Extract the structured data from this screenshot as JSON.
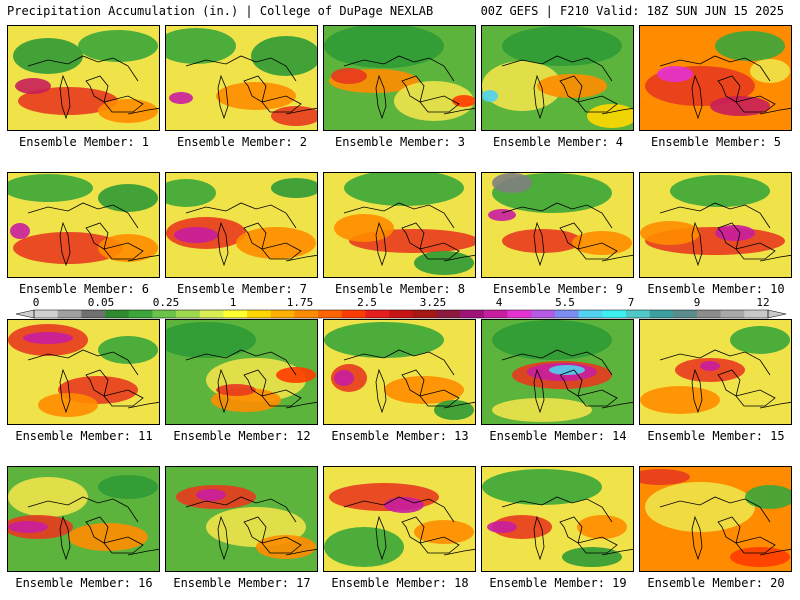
{
  "header": {
    "left_title": "Precipitation Accumulation (in.) | College of DuPage NEXLAB",
    "right_title": "00Z GEFS | F210 Valid: 18Z SUN JUN 15 2025"
  },
  "colorbar": {
    "labels": [
      "0",
      "0.05",
      "0.25",
      "1",
      "1.75",
      "2.5",
      "3.25",
      "4",
      "5.5",
      "7",
      "9",
      "12"
    ],
    "colors": [
      "#cfcfcf",
      "#a0a0a0",
      "#707070",
      "#2e8b2e",
      "#3aa63a",
      "#6cc34a",
      "#9ed84f",
      "#d9ee55",
      "#ffff32",
      "#ffd700",
      "#ffb000",
      "#ff8c00",
      "#ff6400",
      "#ff3c00",
      "#e61e1e",
      "#c81414",
      "#a51818",
      "#8c1a3c",
      "#a0147a",
      "#c81ea0",
      "#e632d2",
      "#b45ae6",
      "#7d8cf0",
      "#50d2f0",
      "#3cf0f0",
      "#50c8c8",
      "#3ca0a0",
      "#5a8c8c",
      "#8c8c8c",
      "#a8a8a8",
      "#c8c8c8"
    ]
  },
  "panels": [
    {
      "label": "Ensemble Member: 1",
      "base": "#f0e34a",
      "blobs": [
        [
          "#2f9a35",
          40,
          30,
          35,
          18
        ],
        [
          "#3aa63a",
          110,
          20,
          40,
          16
        ],
        [
          "#e83a1e",
          60,
          75,
          50,
          14
        ],
        [
          "#c81e5a",
          25,
          60,
          18,
          8
        ],
        [
          "#ff8c00",
          120,
          85,
          30,
          12
        ]
      ]
    },
    {
      "label": "Ensemble Member: 2",
      "base": "#f0e34a",
      "blobs": [
        [
          "#3aa63a",
          30,
          20,
          40,
          18
        ],
        [
          "#2f9a35",
          120,
          30,
          35,
          20
        ],
        [
          "#ff8c00",
          90,
          70,
          40,
          14
        ],
        [
          "#e83a1e",
          130,
          90,
          25,
          10
        ],
        [
          "#c81ea0",
          15,
          72,
          12,
          6
        ]
      ]
    },
    {
      "label": "Ensemble Member: 3",
      "base": "#5cb43c",
      "blobs": [
        [
          "#2f9a35",
          60,
          20,
          60,
          22
        ],
        [
          "#ff8c00",
          50,
          55,
          45,
          12
        ],
        [
          "#e83a1e",
          25,
          50,
          18,
          8
        ],
        [
          "#f0e34a",
          110,
          75,
          40,
          20
        ],
        [
          "#ff3c00",
          140,
          75,
          12,
          6
        ]
      ]
    },
    {
      "label": "Ensemble Member: 4",
      "base": "#5cb43c",
      "blobs": [
        [
          "#2f9a35",
          80,
          20,
          60,
          20
        ],
        [
          "#f0e34a",
          40,
          60,
          40,
          25
        ],
        [
          "#50d2f0",
          8,
          70,
          8,
          6
        ],
        [
          "#ff8c00",
          90,
          60,
          35,
          12
        ],
        [
          "#ffd700",
          130,
          90,
          25,
          12
        ]
      ]
    },
    {
      "label": "Ensemble Member: 5",
      "base": "#ff8c00",
      "blobs": [
        [
          "#3aa63a",
          110,
          20,
          35,
          15
        ],
        [
          "#e83a1e",
          60,
          60,
          55,
          20
        ],
        [
          "#e632d2",
          35,
          48,
          18,
          8
        ],
        [
          "#c81e5a",
          100,
          80,
          30,
          10
        ],
        [
          "#f0e34a",
          130,
          45,
          20,
          12
        ]
      ]
    },
    {
      "label": "Ensemble Member: 6",
      "base": "#f0e34a",
      "blobs": [
        [
          "#3aa63a",
          40,
          15,
          45,
          14
        ],
        [
          "#2f9a35",
          120,
          25,
          30,
          14
        ],
        [
          "#e83a1e",
          60,
          75,
          55,
          16
        ],
        [
          "#c81ea0",
          12,
          58,
          10,
          8
        ],
        [
          "#ff8c00",
          120,
          75,
          30,
          14
        ]
      ]
    },
    {
      "label": "Ensemble Member: 7",
      "base": "#f0e34a",
      "blobs": [
        [
          "#3aa63a",
          20,
          20,
          30,
          14
        ],
        [
          "#e83a1e",
          40,
          60,
          40,
          16
        ],
        [
          "#c81ea0",
          30,
          62,
          22,
          8
        ],
        [
          "#ff8c00",
          110,
          70,
          40,
          16
        ],
        [
          "#2f9a35",
          130,
          15,
          25,
          10
        ]
      ]
    },
    {
      "label": "Ensemble Member: 8",
      "base": "#f0e34a",
      "blobs": [
        [
          "#3aa63a",
          80,
          15,
          60,
          18
        ],
        [
          "#e83a1e",
          90,
          68,
          65,
          12
        ],
        [
          "#ff8c00",
          40,
          55,
          30,
          14
        ],
        [
          "#2f9a35",
          120,
          90,
          30,
          12
        ]
      ]
    },
    {
      "label": "Ensemble Member: 9",
      "base": "#f0e34a",
      "blobs": [
        [
          "#3aa63a",
          70,
          20,
          60,
          20
        ],
        [
          "#808080",
          30,
          10,
          20,
          10
        ],
        [
          "#e83a1e",
          60,
          68,
          40,
          12
        ],
        [
          "#c81ea0",
          20,
          42,
          14,
          6
        ],
        [
          "#ff8c00",
          120,
          70,
          30,
          12
        ]
      ]
    },
    {
      "label": "Ensemble Member: 10",
      "base": "#f0e34a",
      "blobs": [
        [
          "#3aa63a",
          80,
          18,
          50,
          16
        ],
        [
          "#e83a1e",
          75,
          68,
          70,
          14
        ],
        [
          "#c81ea0",
          95,
          60,
          20,
          8
        ],
        [
          "#ff8c00",
          30,
          60,
          30,
          12
        ]
      ]
    },
    {
      "label": "Ensemble Member: 11",
      "base": "#f0e34a",
      "blobs": [
        [
          "#e83a1e",
          40,
          20,
          40,
          16
        ],
        [
          "#c81ea0",
          40,
          18,
          25,
          6
        ],
        [
          "#3aa63a",
          120,
          30,
          30,
          14
        ],
        [
          "#e83a1e",
          90,
          70,
          40,
          14
        ],
        [
          "#ff8c00",
          60,
          85,
          30,
          12
        ]
      ]
    },
    {
      "label": "Ensemble Member: 12",
      "base": "#5cb43c",
      "blobs": [
        [
          "#2f9a35",
          40,
          20,
          50,
          18
        ],
        [
          "#f0e34a",
          90,
          60,
          50,
          22
        ],
        [
          "#ff8c00",
          80,
          80,
          35,
          12
        ],
        [
          "#e83a1e",
          70,
          70,
          20,
          6
        ],
        [
          "#ff3c00",
          130,
          55,
          20,
          8
        ]
      ]
    },
    {
      "label": "Ensemble Member: 13",
      "base": "#f0e34a",
      "blobs": [
        [
          "#3aa63a",
          60,
          20,
          60,
          18
        ],
        [
          "#e83a1e",
          25,
          58,
          18,
          14
        ],
        [
          "#c81ea0",
          20,
          58,
          10,
          8
        ],
        [
          "#ff8c00",
          100,
          70,
          40,
          14
        ],
        [
          "#2f9a35",
          130,
          90,
          20,
          10
        ]
      ]
    },
    {
      "label": "Ensemble Member: 14",
      "base": "#5cb43c",
      "blobs": [
        [
          "#2f9a35",
          70,
          20,
          60,
          20
        ],
        [
          "#e83a1e",
          80,
          55,
          50,
          14
        ],
        [
          "#c81ea0",
          80,
          52,
          35,
          9
        ],
        [
          "#50d2f0",
          85,
          50,
          18,
          5
        ],
        [
          "#f0e34a",
          60,
          90,
          50,
          12
        ]
      ]
    },
    {
      "label": "Ensemble Member: 15",
      "base": "#f0e34a",
      "blobs": [
        [
          "#3aa63a",
          120,
          20,
          30,
          14
        ],
        [
          "#e83a1e",
          70,
          50,
          35,
          12
        ],
        [
          "#c81ea0",
          70,
          46,
          10,
          5
        ],
        [
          "#ff8c00",
          40,
          80,
          40,
          14
        ]
      ]
    },
    {
      "label": "Ensemble Member: 16",
      "base": "#5cb43c",
      "blobs": [
        [
          "#f0e34a",
          40,
          30,
          40,
          20
        ],
        [
          "#e83a1e",
          30,
          60,
          35,
          12
        ],
        [
          "#c81ea0",
          20,
          60,
          20,
          6
        ],
        [
          "#ff8c00",
          100,
          70,
          40,
          14
        ],
        [
          "#2f9a35",
          120,
          20,
          30,
          12
        ]
      ]
    },
    {
      "label": "Ensemble Member: 17",
      "base": "#5cb43c",
      "blobs": [
        [
          "#e83a1e",
          50,
          30,
          40,
          12
        ],
        [
          "#c81ea0",
          45,
          28,
          15,
          6
        ],
        [
          "#f0e34a",
          90,
          60,
          50,
          20
        ],
        [
          "#ff8c00",
          120,
          80,
          30,
          12
        ]
      ]
    },
    {
      "label": "Ensemble Member: 18",
      "base": "#f0e34a",
      "blobs": [
        [
          "#e83a1e",
          60,
          30,
          55,
          14
        ],
        [
          "#c81ea0",
          80,
          38,
          20,
          8
        ],
        [
          "#3aa63a",
          40,
          80,
          40,
          20
        ],
        [
          "#ff8c00",
          120,
          65,
          30,
          12
        ]
      ]
    },
    {
      "label": "Ensemble Member: 19",
      "base": "#f0e34a",
      "blobs": [
        [
          "#3aa63a",
          60,
          20,
          60,
          18
        ],
        [
          "#e83a1e",
          40,
          60,
          30,
          12
        ],
        [
          "#c81ea0",
          20,
          60,
          15,
          6
        ],
        [
          "#2f9a35",
          110,
          90,
          30,
          10
        ],
        [
          "#ff8c00",
          120,
          60,
          25,
          12
        ]
      ]
    },
    {
      "label": "Ensemble Member: 20",
      "base": "#ff8c00",
      "blobs": [
        [
          "#f0e34a",
          60,
          40,
          55,
          25
        ],
        [
          "#3aa63a",
          130,
          30,
          25,
          12
        ],
        [
          "#e83a1e",
          20,
          10,
          30,
          8
        ],
        [
          "#ff3c00",
          120,
          90,
          30,
          10
        ]
      ]
    }
  ]
}
